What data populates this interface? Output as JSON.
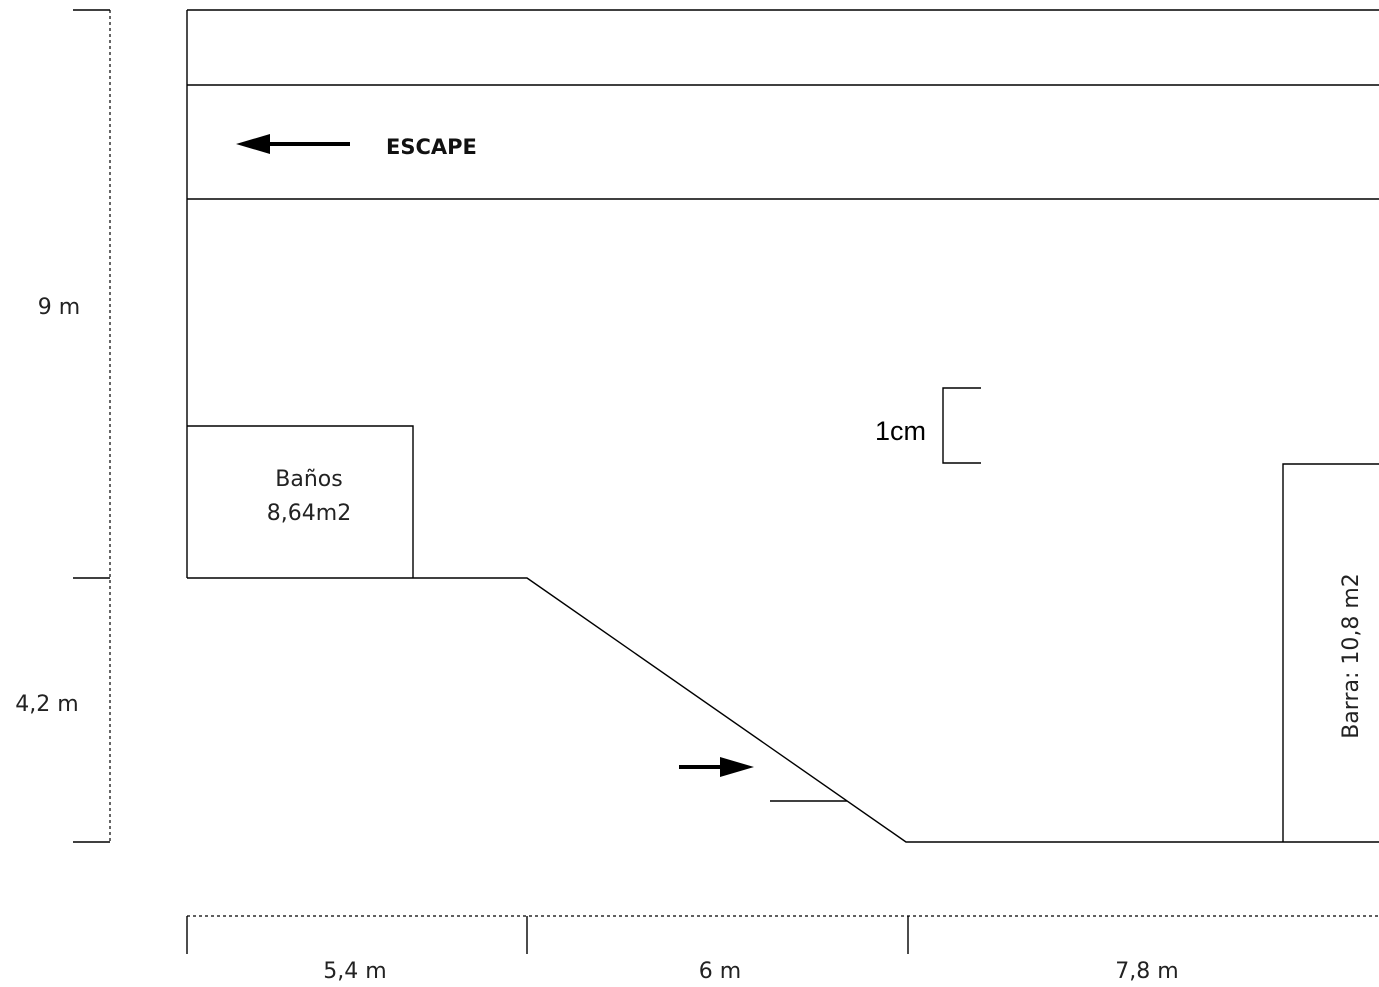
{
  "labels": {
    "escape": "ESCAPE",
    "banos_name": "Baños",
    "banos_area": "8,64m2",
    "barra": "Barra: 10,8 m2",
    "scale": "1cm"
  },
  "dimensions": {
    "vertical": [
      "9 m",
      "4,2 m"
    ],
    "horizontal": [
      "5,4 m",
      "6 m",
      "7,8 m"
    ]
  }
}
